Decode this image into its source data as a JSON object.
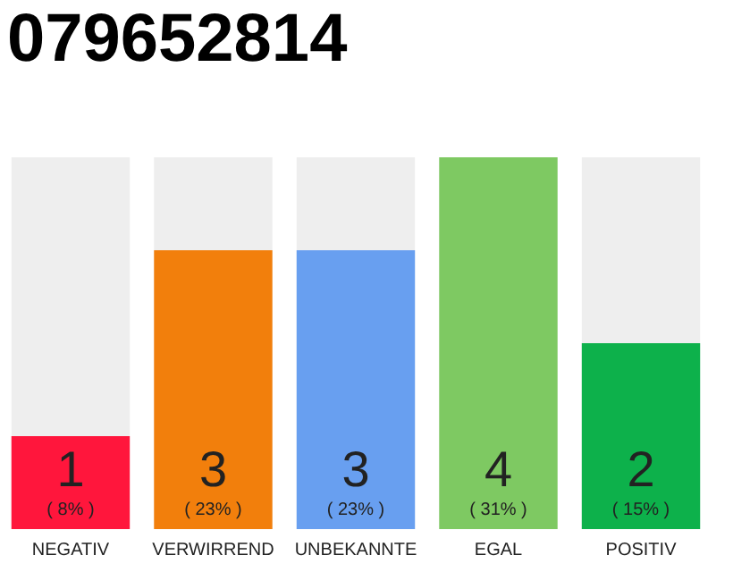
{
  "chart_data": {
    "type": "bar",
    "title": "079652814",
    "categories": [
      "NEGATIV",
      "VERWIRREND",
      "UNBEKANNTE",
      "EGAL",
      "POSITIV"
    ],
    "values": [
      1,
      3,
      3,
      4,
      2
    ],
    "colors": [
      "#ff163c",
      "#f27f0c",
      "#689ff0",
      "#7ec962",
      "#0db14b"
    ],
    "ylim": [
      0,
      4
    ],
    "data_labels": true,
    "grid": false,
    "tick_labels": "x",
    "annotations": [
      "( 8% )",
      "( 23% )",
      "( 23% )",
      "( 31% )",
      "( 15% )"
    ]
  }
}
